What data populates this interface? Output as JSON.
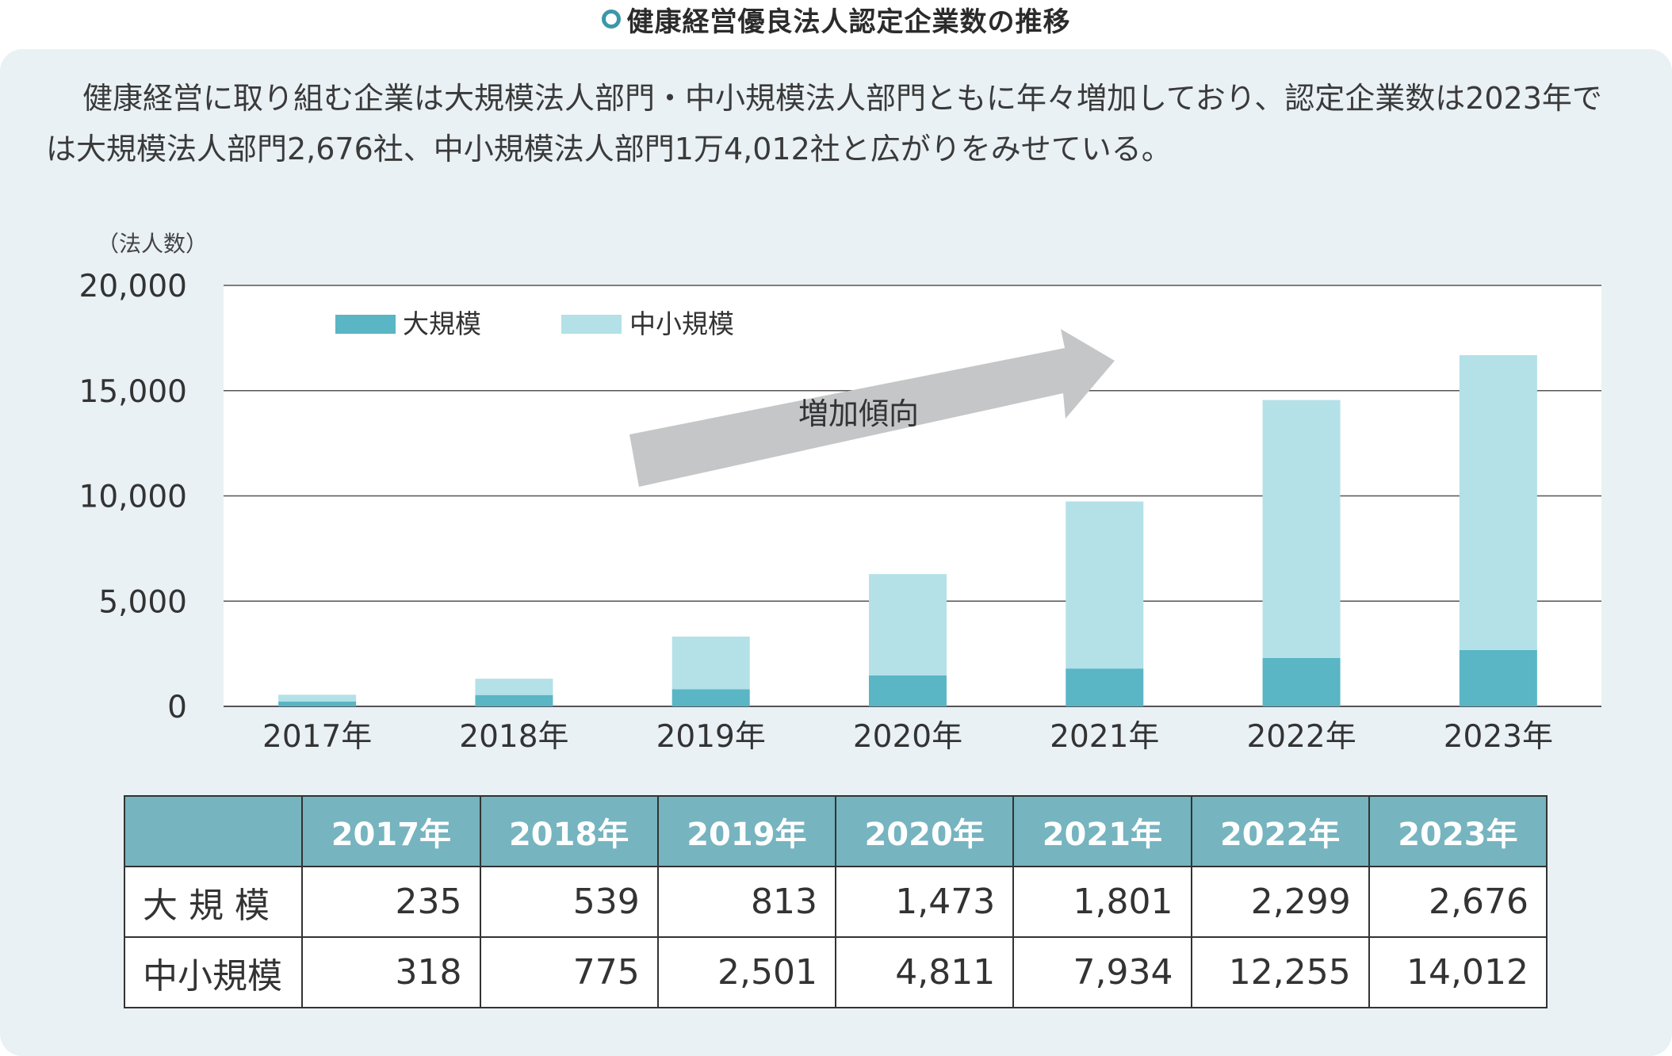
{
  "title": "健康経営優良法人認定企業数の推移",
  "description": "健康経営に取り組む企業は大規模法人部門・中小規模法人部門ともに年々増加しており、認定企業数は2023年では大規模法人部門2,676社、中小規模法人部門1万4,012社と広がりをみせている。",
  "chart_data": {
    "type": "bar",
    "stacked": true,
    "ylabel": "（法人数）",
    "ylim": [
      0,
      20000
    ],
    "yticks": [
      "0",
      "5,000",
      "10,000",
      "15,000",
      "20,000"
    ],
    "ytick_values": [
      0,
      5000,
      10000,
      15000,
      20000
    ],
    "categories": [
      "2017年",
      "2018年",
      "2019年",
      "2020年",
      "2021年",
      "2022年",
      "2023年"
    ],
    "series": [
      {
        "name": "大規模",
        "color": "#5ab5c5",
        "values": [
          235,
          539,
          813,
          1473,
          1801,
          2299,
          2676
        ]
      },
      {
        "name": "中小規模",
        "color": "#b3e1e7",
        "values": [
          318,
          775,
          2501,
          4811,
          7934,
          12255,
          14012
        ]
      }
    ],
    "legend": "top-left",
    "grid": true,
    "annotation": "増加傾向"
  },
  "table": {
    "headers": [
      "2017年",
      "2018年",
      "2019年",
      "2020年",
      "2021年",
      "2022年",
      "2023年"
    ],
    "rows": [
      {
        "label": "大 規 模",
        "values": [
          "235",
          "539",
          "813",
          "1,473",
          "1,801",
          "2,299",
          "2,676"
        ]
      },
      {
        "label": "中小規模",
        "values": [
          "318",
          "775",
          "2,501",
          "4,811",
          "7,934",
          "12,255",
          "14,012"
        ]
      }
    ]
  }
}
